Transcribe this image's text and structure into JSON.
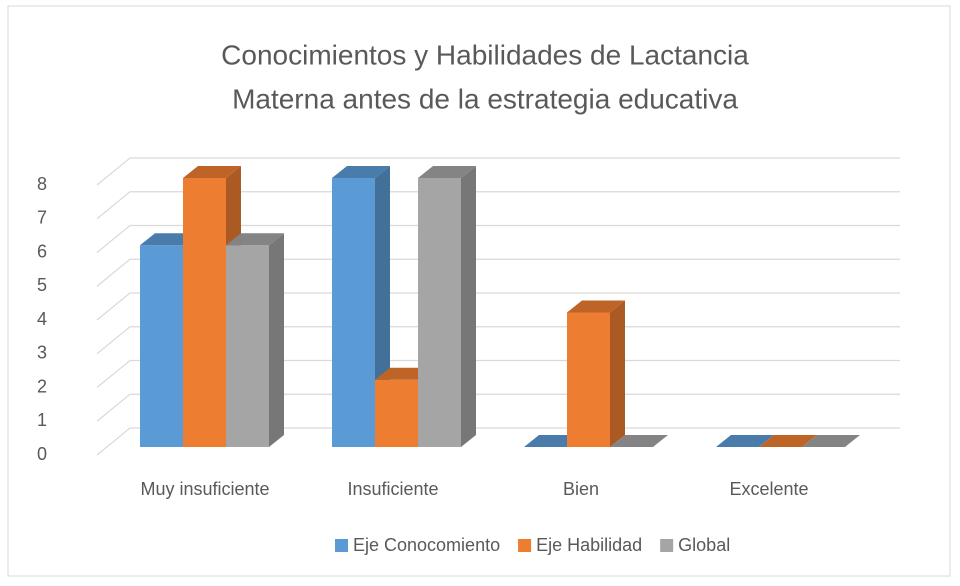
{
  "chart_data": {
    "type": "bar3d",
    "title": [
      "Conocimientos y Habilidades de Lactancia",
      "Materna antes de la estrategia educativa"
    ],
    "categories": [
      "Muy insuficiente",
      "Insuficiente",
      "Bien",
      "Excelente"
    ],
    "series": [
      {
        "name": "Eje Conocomiento",
        "color": "#5b9bd5",
        "values": [
          6,
          8,
          0,
          0
        ]
      },
      {
        "name": "Eje Habilidad",
        "color": "#ed7d31",
        "values": [
          8,
          2,
          4,
          0
        ]
      },
      {
        "name": "Global",
        "color": "#a5a5a5",
        "values": [
          6,
          8,
          0,
          0
        ]
      }
    ],
    "ylim": [
      0,
      8
    ],
    "yticks": [
      0,
      1,
      2,
      3,
      4,
      5,
      6,
      7,
      8
    ],
    "grid": true,
    "legend": "bottom"
  }
}
